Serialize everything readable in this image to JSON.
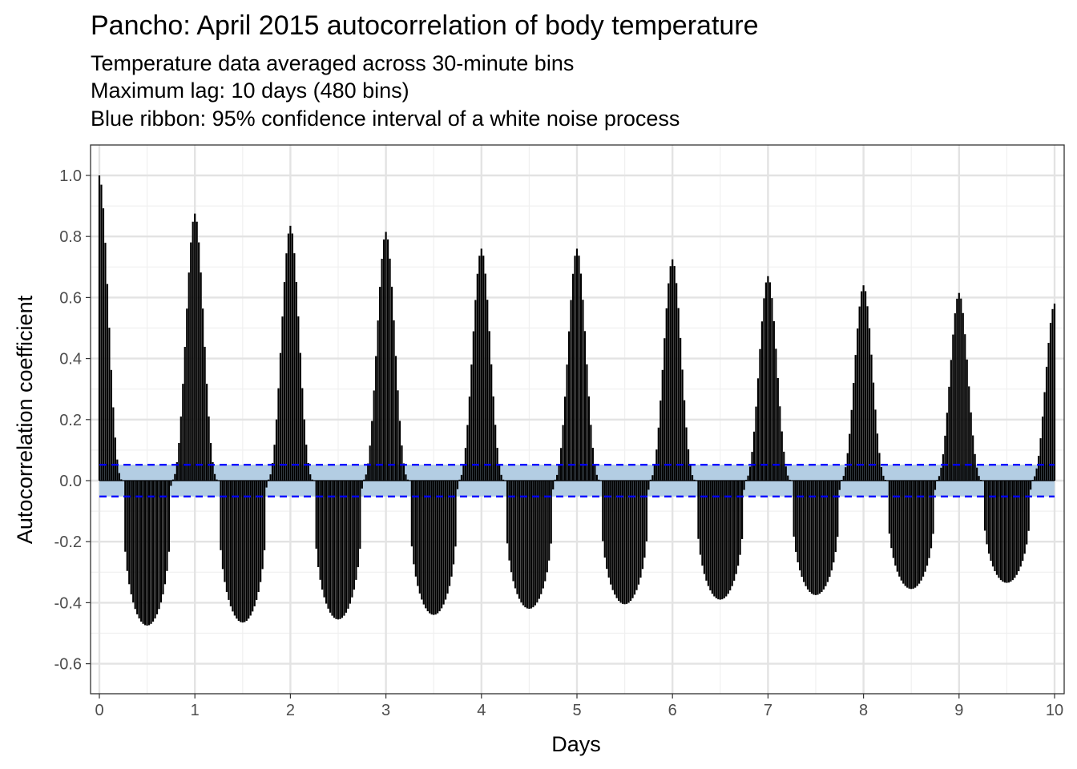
{
  "title": "Pancho: April 2015 autocorrelation of body temperature",
  "subtitle_lines": [
    "Temperature data averaged across 30-minute bins",
    "Maximum lag: 10 days (480 bins)",
    "Blue ribbon: 95% confidence interval of a white noise process"
  ],
  "chart_data": {
    "type": "bar",
    "xlabel": "Days",
    "ylabel": "Autocorrelation coefficient",
    "xlim": [
      0,
      10
    ],
    "ylim": [
      -0.7,
      1.1
    ],
    "x_ticks": [
      0,
      1,
      2,
      3,
      4,
      5,
      6,
      7,
      8,
      9,
      10
    ],
    "x_tick_labels": [
      "0",
      "1",
      "2",
      "3",
      "4",
      "5",
      "6",
      "7",
      "8",
      "9",
      "10"
    ],
    "y_ticks": [
      -0.6,
      -0.4,
      -0.2,
      0.0,
      0.2,
      0.4,
      0.6,
      0.8,
      1.0
    ],
    "y_tick_labels": [
      "-0.6",
      "-0.4",
      "-0.2",
      "0.0",
      "0.2",
      "0.4",
      "0.6",
      "0.8",
      "1.0"
    ],
    "grid": true,
    "lag_bin_days": 0.020833,
    "max_lag_bins": 480,
    "confidence_interval": [
      -0.052,
      0.052
    ],
    "ribbon_color": "#b3cde3",
    "ci_line_color": "#0000ff",
    "bar_color": "#000000",
    "daily_peaks": [
      {
        "day": 0,
        "acf": 1.0
      },
      {
        "day": 1,
        "acf": 0.875
      },
      {
        "day": 2,
        "acf": 0.835
      },
      {
        "day": 3,
        "acf": 0.815
      },
      {
        "day": 4,
        "acf": 0.76
      },
      {
        "day": 5,
        "acf": 0.76
      },
      {
        "day": 6,
        "acf": 0.725
      },
      {
        "day": 7,
        "acf": 0.67
      },
      {
        "day": 8,
        "acf": 0.64
      },
      {
        "day": 9,
        "acf": 0.615
      },
      {
        "day": 10,
        "acf": 0.58
      }
    ],
    "daily_troughs": [
      {
        "day": 0.5,
        "acf": -0.475
      },
      {
        "day": 1.5,
        "acf": -0.465
      },
      {
        "day": 2.5,
        "acf": -0.455
      },
      {
        "day": 3.5,
        "acf": -0.44
      },
      {
        "day": 4.5,
        "acf": -0.42
      },
      {
        "day": 5.5,
        "acf": -0.405
      },
      {
        "day": 6.5,
        "acf": -0.39
      },
      {
        "day": 7.5,
        "acf": -0.375
      },
      {
        "day": 8.5,
        "acf": -0.355
      },
      {
        "day": 9.5,
        "acf": -0.335
      }
    ]
  }
}
